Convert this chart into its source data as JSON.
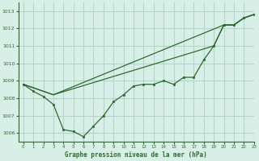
{
  "title": "Graphe pression niveau de la mer (hPa)",
  "background_color": "#d8efe8",
  "grid_color": "#b0d8c8",
  "line_color": "#2d6b2d",
  "xlim": [
    -0.5,
    23
  ],
  "ylim": [
    1005.5,
    1013.5
  ],
  "yticks": [
    1006,
    1007,
    1008,
    1009,
    1010,
    1011,
    1012,
    1013
  ],
  "xticks": [
    0,
    1,
    2,
    3,
    4,
    5,
    6,
    7,
    8,
    9,
    10,
    11,
    12,
    13,
    14,
    15,
    16,
    17,
    18,
    19,
    20,
    21,
    22,
    23
  ],
  "series": [
    {
      "x": [
        0,
        1,
        2,
        3,
        4,
        5,
        6,
        7,
        8,
        9,
        10,
        11,
        12,
        13,
        14,
        15,
        16,
        17,
        18,
        19,
        20,
        21,
        22,
        23
      ],
      "y": [
        1008.8,
        1008.4,
        1008.1,
        1007.65,
        1006.2,
        1006.1,
        1005.8,
        1006.4,
        1007.0,
        1007.8,
        1008.2,
        1008.7,
        1008.8,
        1008.8,
        1009.0,
        1008.8,
        1009.2,
        1009.2,
        1010.2,
        1011.0,
        1012.2,
        1012.2,
        1012.6,
        1012.8
      ],
      "has_markers": true
    },
    {
      "x": [
        0,
        3,
        20,
        21,
        22,
        23
      ],
      "y": [
        1008.8,
        1008.2,
        1012.2,
        1012.2,
        1012.6,
        1012.8
      ],
      "has_markers": false
    },
    {
      "x": [
        0,
        3,
        19,
        20,
        21,
        22,
        23
      ],
      "y": [
        1008.8,
        1008.2,
        1011.0,
        1012.2,
        1012.2,
        1012.6,
        1012.8
      ],
      "has_markers": false
    }
  ]
}
